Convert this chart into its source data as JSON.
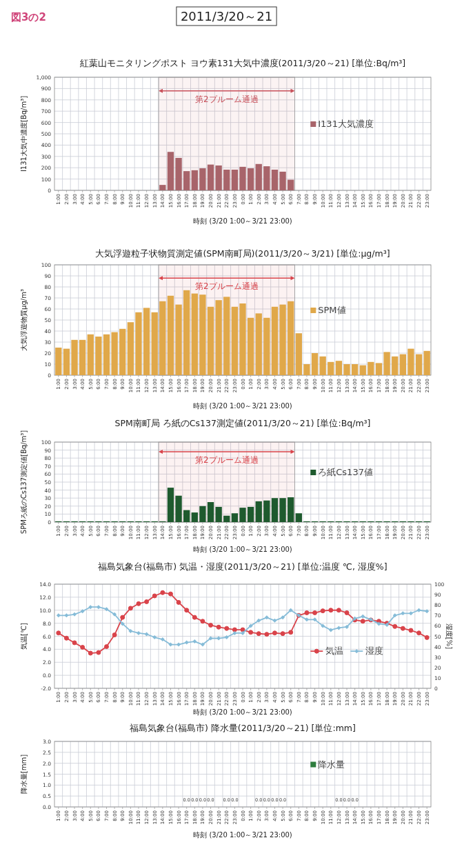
{
  "chart_data": [
    {
      "type": "bar",
      "title": "紅葉山モニタリングポスト ヨウ素131大気中濃度(2011/3/20～21) [単位:Bq/m³]",
      "ylabel": "I131大気中濃度[Bq/m³]",
      "xlabel": "時刻 (3/20 1:00～3/21 23:00)",
      "annotations": [
        "図3の2",
        "2011/3/20～21"
      ],
      "x": [
        "2011-03-20T14:00",
        "2011-03-20T15:00",
        "2011-03-20T16:00",
        "2011-03-20T17:00",
        "2011-03-20T18:00",
        "2011-03-20T19:00",
        "2011-03-20T20:00",
        "2011-03-20T21:00",
        "2011-03-20T22:00",
        "2011-03-20T23:00",
        "2011-03-21T00:00",
        "2011-03-21T01:00",
        "2011-03-21T02:00",
        "2011-03-21T03:00",
        "2011-03-21T04:00",
        "2011-03-21T05:00",
        "2011-03-21T06:00"
      ],
      "xlim": [
        "2011-03-20T00:30",
        "2011-03-21T23:30"
      ],
      "xticks": [
        {
          "value": "2011-03-20T01:00",
          "label": "1:00"
        },
        {
          "value": "2011-03-20T02:00",
          "label": "2:00"
        },
        {
          "value": "2011-03-20T03:00",
          "label": "3:00"
        },
        {
          "value": "2011-03-20T04:00",
          "label": "4:00"
        },
        {
          "value": "2011-03-20T05:00",
          "label": "5:00"
        },
        {
          "value": "2011-03-20T06:00",
          "label": "6:00"
        },
        {
          "value": "2011-03-20T07:00",
          "label": "7:00"
        },
        {
          "value": "2011-03-20T08:00",
          "label": "8:00"
        },
        {
          "value": "2011-03-20T09:00",
          "label": "9:00"
        },
        {
          "value": "2011-03-20T10:00",
          "label": "10:00"
        },
        {
          "value": "2011-03-20T11:00",
          "label": "11:00"
        },
        {
          "value": "2011-03-20T12:00",
          "label": "12:00"
        },
        {
          "value": "2011-03-20T13:00",
          "label": "13:00"
        },
        {
          "value": "2011-03-20T14:00",
          "label": "14:00"
        },
        {
          "value": "2011-03-20T15:00",
          "label": "15:00"
        },
        {
          "value": "2011-03-20T16:00",
          "label": "16:00"
        },
        {
          "value": "2011-03-20T17:00",
          "label": "17:00"
        },
        {
          "value": "2011-03-20T18:00",
          "label": "18:00"
        },
        {
          "value": "2011-03-20T19:00",
          "label": "19:00"
        },
        {
          "value": "2011-03-20T20:00",
          "label": "20:00"
        },
        {
          "value": "2011-03-20T21:00",
          "label": "21:00"
        },
        {
          "value": "2011-03-20T22:00",
          "label": "22:00"
        },
        {
          "value": "2011-03-20T23:00",
          "label": "23:00"
        },
        {
          "value": "2011-03-21T00:00",
          "label": "0:00"
        },
        {
          "value": "2011-03-21T01:00",
          "label": "1:00"
        },
        {
          "value": "2011-03-21T02:00",
          "label": "2:00"
        },
        {
          "value": "2011-03-21T03:00",
          "label": "3:00"
        },
        {
          "value": "2011-03-21T04:00",
          "label": "4:00"
        },
        {
          "value": "2011-03-21T05:00",
          "label": "5:00"
        },
        {
          "value": "2011-03-21T06:00",
          "label": "6:00"
        },
        {
          "value": "2011-03-21T07:00",
          "label": "7:00"
        },
        {
          "value": "2011-03-21T08:00",
          "label": "8:00"
        },
        {
          "value": "2011-03-21T09:00",
          "label": "9:00"
        },
        {
          "value": "2011-03-21T10:00",
          "label": "10:00"
        },
        {
          "value": "2011-03-21T11:00",
          "label": "11:00"
        },
        {
          "value": "2011-03-21T12:00",
          "label": "12:00"
        },
        {
          "value": "2011-03-21T13:00",
          "label": "13:00"
        },
        {
          "value": "2011-03-21T14:00",
          "label": "14:00"
        },
        {
          "value": "2011-03-21T15:00",
          "label": "15:00"
        },
        {
          "value": "2011-03-21T16:00",
          "label": "16:00"
        },
        {
          "value": "2011-03-21T17:00",
          "label": "17:00"
        },
        {
          "value": "2011-03-21T18:00",
          "label": "18:00"
        },
        {
          "value": "2011-03-21T19:00",
          "label": "19:00"
        },
        {
          "value": "2011-03-21T20:00",
          "label": "20:00"
        },
        {
          "value": "2011-03-21T21:00",
          "label": "21:00"
        },
        {
          "value": "2011-03-21T22:00",
          "label": "22:00"
        },
        {
          "value": "2011-03-21T23:00",
          "label": "23:00"
        }
      ],
      "ylim": [
        0,
        1000
      ],
      "yticks": [
        0,
        100,
        200,
        300,
        400,
        500,
        600,
        700,
        800,
        900,
        {
          "value": 1000,
          "label": "1,000"
        }
      ],
      "grid": true,
      "legend": "right",
      "bands": [
        {
          "axis": "x",
          "from": "2011-03-20T13:30",
          "to": "2011-03-21T06:30",
          "label": "第2プルーム通過",
          "color": "#c8505a"
        }
      ],
      "series": [
        {
          "name": "I131大気濃度",
          "color": "#a8646a",
          "values": [
            48,
            340,
            287,
            170,
            178,
            195,
            228,
            220,
            183,
            183,
            208,
            195,
            233,
            213,
            183,
            165,
            94
          ]
        }
      ]
    },
    {
      "type": "bar",
      "title": "大気浮遊粒子状物質測定値(SPM南町局)(2011/3/20～3/21) [単位:μg/m³]",
      "ylabel": "大気浮遊物質μg/m³",
      "xlabel": "時刻 (3/20 1:00～3/21 23:00)",
      "x": [
        "2011-03-20T01:00",
        "2011-03-20T02:00",
        "2011-03-20T03:00",
        "2011-03-20T04:00",
        "2011-03-20T05:00",
        "2011-03-20T06:00",
        "2011-03-20T07:00",
        "2011-03-20T08:00",
        "2011-03-20T09:00",
        "2011-03-20T10:00",
        "2011-03-20T11:00",
        "2011-03-20T12:00",
        "2011-03-20T13:00",
        "2011-03-20T14:00",
        "2011-03-20T15:00",
        "2011-03-20T16:00",
        "2011-03-20T17:00",
        "2011-03-20T18:00",
        "2011-03-20T19:00",
        "2011-03-20T20:00",
        "2011-03-20T21:00",
        "2011-03-20T22:00",
        "2011-03-20T23:00",
        "2011-03-21T00:00",
        "2011-03-21T01:00",
        "2011-03-21T02:00",
        "2011-03-21T03:00",
        "2011-03-21T04:00",
        "2011-03-21T05:00",
        "2011-03-21T06:00",
        "2011-03-21T07:00",
        "2011-03-21T08:00",
        "2011-03-21T09:00",
        "2011-03-21T10:00",
        "2011-03-21T11:00",
        "2011-03-21T12:00",
        "2011-03-21T13:00",
        "2011-03-21T14:00",
        "2011-03-21T15:00",
        "2011-03-21T16:00",
        "2011-03-21T17:00",
        "2011-03-21T18:00",
        "2011-03-21T19:00",
        "2011-03-21T20:00",
        "2011-03-21T21:00",
        "2011-03-21T22:00",
        "2011-03-21T23:00"
      ],
      "xlim": [
        "2011-03-20T00:30",
        "2011-03-21T23:30"
      ],
      "xticks": [
        {
          "value": "2011-03-20T01:00",
          "label": "1:00"
        },
        {
          "value": "2011-03-20T02:00",
          "label": "2:00"
        },
        {
          "value": "2011-03-20T03:00",
          "label": "3:00"
        },
        {
          "value": "2011-03-20T04:00",
          "label": "4:00"
        },
        {
          "value": "2011-03-20T05:00",
          "label": "5:00"
        },
        {
          "value": "2011-03-20T06:00",
          "label": "6:00"
        },
        {
          "value": "2011-03-20T07:00",
          "label": "7:00"
        },
        {
          "value": "2011-03-20T08:00",
          "label": "8:00"
        },
        {
          "value": "2011-03-20T09:00",
          "label": "9:00"
        },
        {
          "value": "2011-03-20T10:00",
          "label": "10:00"
        },
        {
          "value": "2011-03-20T11:00",
          "label": "11:00"
        },
        {
          "value": "2011-03-20T12:00",
          "label": "12:00"
        },
        {
          "value": "2011-03-20T13:00",
          "label": "13:00"
        },
        {
          "value": "2011-03-20T14:00",
          "label": "14:00"
        },
        {
          "value": "2011-03-20T15:00",
          "label": "15:00"
        },
        {
          "value": "2011-03-20T16:00",
          "label": "16:00"
        },
        {
          "value": "2011-03-20T17:00",
          "label": "17:00"
        },
        {
          "value": "2011-03-20T18:00",
          "label": "18:00"
        },
        {
          "value": "2011-03-20T19:00",
          "label": "19:00"
        },
        {
          "value": "2011-03-20T20:00",
          "label": "20:00"
        },
        {
          "value": "2011-03-20T21:00",
          "label": "21:00"
        },
        {
          "value": "2011-03-20T22:00",
          "label": "22:00"
        },
        {
          "value": "2011-03-20T23:00",
          "label": "23:00"
        },
        {
          "value": "2011-03-21T00:00",
          "label": "0:00"
        },
        {
          "value": "2011-03-21T01:00",
          "label": "1:00"
        },
        {
          "value": "2011-03-21T02:00",
          "label": "2:00"
        },
        {
          "value": "2011-03-21T03:00",
          "label": "3:00"
        },
        {
          "value": "2011-03-21T04:00",
          "label": "4:00"
        },
        {
          "value": "2011-03-21T05:00",
          "label": "5:00"
        },
        {
          "value": "2011-03-21T06:00",
          "label": "6:00"
        },
        {
          "value": "2011-03-21T07:00",
          "label": "7:00"
        },
        {
          "value": "2011-03-21T08:00",
          "label": "8:00"
        },
        {
          "value": "2011-03-21T09:00",
          "label": "9:00"
        },
        {
          "value": "2011-03-21T10:00",
          "label": "10:00"
        },
        {
          "value": "2011-03-21T11:00",
          "label": "11:00"
        },
        {
          "value": "2011-03-21T12:00",
          "label": "12:00"
        },
        {
          "value": "2011-03-21T13:00",
          "label": "13:00"
        },
        {
          "value": "2011-03-21T14:00",
          "label": "14:00"
        },
        {
          "value": "2011-03-21T15:00",
          "label": "15:00"
        },
        {
          "value": "2011-03-21T16:00",
          "label": "16:00"
        },
        {
          "value": "2011-03-21T17:00",
          "label": "17:00"
        },
        {
          "value": "2011-03-21T18:00",
          "label": "18:00"
        },
        {
          "value": "2011-03-21T19:00",
          "label": "19:00"
        },
        {
          "value": "2011-03-21T20:00",
          "label": "20:00"
        },
        {
          "value": "2011-03-21T21:00",
          "label": "21:00"
        },
        {
          "value": "2011-03-21T22:00",
          "label": "22:00"
        },
        {
          "value": "2011-03-21T23:00",
          "label": "23:00"
        }
      ],
      "ylim": [
        0,
        100
      ],
      "yticks": [
        0,
        10,
        20,
        30,
        40,
        50,
        60,
        70,
        80,
        90,
        100
      ],
      "grid": true,
      "legend": "right",
      "bands": [
        {
          "axis": "x",
          "from": "2011-03-20T13:30",
          "to": "2011-03-21T06:30",
          "label": "第2プルーム通過",
          "color": "#d9434a"
        }
      ],
      "series": [
        {
          "name": "SPM値",
          "color": "#e0a84a",
          "values": [
            25,
            24,
            32,
            32,
            37,
            35,
            37,
            39,
            42,
            48,
            57,
            61,
            57,
            67,
            72,
            64,
            77,
            74,
            73,
            62,
            68,
            71,
            62,
            65,
            52,
            56,
            52,
            62,
            64,
            67,
            38,
            10,
            20,
            17,
            12,
            13,
            10,
            10,
            9,
            12,
            11,
            21,
            17,
            19,
            24,
            19,
            22
          ]
        }
      ]
    },
    {
      "type": "bar",
      "title": "SPM南町局 ろ紙のCs137測定値(2011/3/20～21) [単位:Bq/m³]",
      "ylabel": "SPMろ紙のCs137測定値[Bq/m³]",
      "xlabel": "時刻 (3/20 1:00～3/21 23:00)",
      "x": [
        "2011-03-20T01:00",
        "2011-03-20T02:00",
        "2011-03-20T03:00",
        "2011-03-20T04:00",
        "2011-03-20T05:00",
        "2011-03-20T06:00",
        "2011-03-20T07:00",
        "2011-03-20T08:00",
        "2011-03-20T09:00",
        "2011-03-20T10:00",
        "2011-03-20T11:00",
        "2011-03-20T12:00",
        "2011-03-20T13:00",
        "2011-03-20T14:00",
        "2011-03-20T15:00",
        "2011-03-20T16:00",
        "2011-03-20T17:00",
        "2011-03-20T18:00",
        "2011-03-20T19:00",
        "2011-03-20T20:00",
        "2011-03-20T21:00",
        "2011-03-20T22:00",
        "2011-03-20T23:00",
        "2011-03-21T00:00",
        "2011-03-21T01:00",
        "2011-03-21T02:00",
        "2011-03-21T03:00",
        "2011-03-21T04:00",
        "2011-03-21T05:00",
        "2011-03-21T06:00",
        "2011-03-21T07:00",
        "2011-03-21T08:00",
        "2011-03-21T09:00",
        "2011-03-21T10:00",
        "2011-03-21T11:00",
        "2011-03-21T12:00",
        "2011-03-21T13:00",
        "2011-03-21T14:00",
        "2011-03-21T15:00",
        "2011-03-21T16:00",
        "2011-03-21T17:00",
        "2011-03-21T18:00",
        "2011-03-21T19:00",
        "2011-03-21T20:00",
        "2011-03-21T21:00",
        "2011-03-21T22:00",
        "2011-03-21T23:00"
      ],
      "xlim": [
        "2011-03-20T00:30",
        "2011-03-21T23:30"
      ],
      "xticks": [
        {
          "value": "2011-03-20T01:00",
          "label": "1:00"
        },
        {
          "value": "2011-03-20T02:00",
          "label": "2:00"
        },
        {
          "value": "2011-03-20T03:00",
          "label": "3:00"
        },
        {
          "value": "2011-03-20T04:00",
          "label": "4:00"
        },
        {
          "value": "2011-03-20T05:00",
          "label": "5:00"
        },
        {
          "value": "2011-03-20T06:00",
          "label": "6:00"
        },
        {
          "value": "2011-03-20T07:00",
          "label": "7:00"
        },
        {
          "value": "2011-03-20T08:00",
          "label": "8:00"
        },
        {
          "value": "2011-03-20T09:00",
          "label": "9:00"
        },
        {
          "value": "2011-03-20T10:00",
          "label": "10:00"
        },
        {
          "value": "2011-03-20T11:00",
          "label": "11:00"
        },
        {
          "value": "2011-03-20T12:00",
          "label": "12:00"
        },
        {
          "value": "2011-03-20T13:00",
          "label": "13:00"
        },
        {
          "value": "2011-03-20T14:00",
          "label": "14:00"
        },
        {
          "value": "2011-03-20T15:00",
          "label": "15:00"
        },
        {
          "value": "2011-03-20T16:00",
          "label": "16:00"
        },
        {
          "value": "2011-03-20T17:00",
          "label": "17:00"
        },
        {
          "value": "2011-03-20T18:00",
          "label": "18:00"
        },
        {
          "value": "2011-03-20T19:00",
          "label": "19:00"
        },
        {
          "value": "2011-03-20T20:00",
          "label": "20:00"
        },
        {
          "value": "2011-03-20T21:00",
          "label": "21:00"
        },
        {
          "value": "2011-03-20T22:00",
          "label": "22:00"
        },
        {
          "value": "2011-03-20T23:00",
          "label": "23:00"
        },
        {
          "value": "2011-03-21T00:00",
          "label": "0:00"
        },
        {
          "value": "2011-03-21T01:00",
          "label": "1:00"
        },
        {
          "value": "2011-03-21T02:00",
          "label": "2:00"
        },
        {
          "value": "2011-03-21T03:00",
          "label": "3:00"
        },
        {
          "value": "2011-03-21T04:00",
          "label": "4:00"
        },
        {
          "value": "2011-03-21T05:00",
          "label": "5:00"
        },
        {
          "value": "2011-03-21T06:00",
          "label": "6:00"
        },
        {
          "value": "2011-03-21T07:00",
          "label": "7:00"
        },
        {
          "value": "2011-03-21T08:00",
          "label": "8:00"
        },
        {
          "value": "2011-03-21T09:00",
          "label": "9:00"
        },
        {
          "value": "2011-03-21T10:00",
          "label": "10:00"
        },
        {
          "value": "2011-03-21T11:00",
          "label": "11:00"
        },
        {
          "value": "2011-03-21T12:00",
          "label": "12:00"
        },
        {
          "value": "2011-03-21T13:00",
          "label": "13:00"
        },
        {
          "value": "2011-03-21T14:00",
          "label": "14:00"
        },
        {
          "value": "2011-03-21T15:00",
          "label": "15:00"
        },
        {
          "value": "2011-03-21T16:00",
          "label": "16:00"
        },
        {
          "value": "2011-03-21T17:00",
          "label": "17:00"
        },
        {
          "value": "2011-03-21T18:00",
          "label": "18:00"
        },
        {
          "value": "2011-03-21T19:00",
          "label": "19:00"
        },
        {
          "value": "2011-03-21T20:00",
          "label": "20:00"
        },
        {
          "value": "2011-03-21T21:00",
          "label": "21:00"
        },
        {
          "value": "2011-03-21T22:00",
          "label": "22:00"
        },
        {
          "value": "2011-03-21T23:00",
          "label": "23:00"
        }
      ],
      "ylim": [
        0,
        100
      ],
      "yticks": [
        0,
        10,
        20,
        30,
        40,
        50,
        60,
        70,
        80,
        90,
        100
      ],
      "grid": true,
      "legend": "right",
      "bands": [
        {
          "axis": "x",
          "from": "2011-03-20T13:30",
          "to": "2011-03-21T06:30",
          "label": "第2プルーム通過",
          "color": "#d9434a"
        }
      ],
      "series": [
        {
          "name": "ろ紙Cs137値",
          "color": "#1e5a2e",
          "values": [
            1,
            1,
            1,
            1,
            1,
            1,
            1,
            1,
            1,
            1,
            1,
            1,
            1,
            1,
            43,
            33,
            15,
            12,
            20,
            25,
            19,
            8,
            11,
            18,
            19,
            26,
            27,
            30,
            30,
            31,
            11,
            1,
            1,
            1,
            1,
            1,
            1,
            1,
            1,
            1,
            1,
            1,
            1,
            1,
            1,
            1,
            1
          ]
        }
      ]
    },
    {
      "type": "line",
      "title": "福島気象台(福島市) 気温・湿度(2011/3/20～21) [単位:温度 ℃, 湿度%]",
      "ylabel": "気温[℃]",
      "y2label": "湿度[%]",
      "xlabel": "時刻 (3/20 1:00～3/21 23:00)",
      "x": [
        "2011-03-20T01:00",
        "2011-03-20T02:00",
        "2011-03-20T03:00",
        "2011-03-20T04:00",
        "2011-03-20T05:00",
        "2011-03-20T06:00",
        "2011-03-20T07:00",
        "2011-03-20T08:00",
        "2011-03-20T09:00",
        "2011-03-20T10:00",
        "2011-03-20T11:00",
        "2011-03-20T12:00",
        "2011-03-20T13:00",
        "2011-03-20T14:00",
        "2011-03-20T15:00",
        "2011-03-20T16:00",
        "2011-03-20T17:00",
        "2011-03-20T18:00",
        "2011-03-20T19:00",
        "2011-03-20T20:00",
        "2011-03-20T21:00",
        "2011-03-20T22:00",
        "2011-03-20T23:00",
        "2011-03-21T00:00",
        "2011-03-21T01:00",
        "2011-03-21T02:00",
        "2011-03-21T03:00",
        "2011-03-21T04:00",
        "2011-03-21T05:00",
        "2011-03-21T06:00",
        "2011-03-21T07:00",
        "2011-03-21T08:00",
        "2011-03-21T09:00",
        "2011-03-21T10:00",
        "2011-03-21T11:00",
        "2011-03-21T12:00",
        "2011-03-21T13:00",
        "2011-03-21T14:00",
        "2011-03-21T15:00",
        "2011-03-21T16:00",
        "2011-03-21T17:00",
        "2011-03-21T18:00",
        "2011-03-21T19:00",
        "2011-03-21T20:00",
        "2011-03-21T21:00",
        "2011-03-21T22:00",
        "2011-03-21T23:00"
      ],
      "xlim": [
        "2011-03-20T00:30",
        "2011-03-21T23:30"
      ],
      "xticks": [
        {
          "value": "2011-03-20T01:00",
          "label": "1:00"
        },
        {
          "value": "2011-03-20T02:00",
          "label": "2:00"
        },
        {
          "value": "2011-03-20T03:00",
          "label": "3:00"
        },
        {
          "value": "2011-03-20T04:00",
          "label": "4:00"
        },
        {
          "value": "2011-03-20T05:00",
          "label": "5:00"
        },
        {
          "value": "2011-03-20T06:00",
          "label": "6:00"
        },
        {
          "value": "2011-03-20T07:00",
          "label": "7:00"
        },
        {
          "value": "2011-03-20T08:00",
          "label": "8:00"
        },
        {
          "value": "2011-03-20T09:00",
          "label": "9:00"
        },
        {
          "value": "2011-03-20T10:00",
          "label": "10:00"
        },
        {
          "value": "2011-03-20T11:00",
          "label": "11:00"
        },
        {
          "value": "2011-03-20T12:00",
          "label": "12:00"
        },
        {
          "value": "2011-03-20T13:00",
          "label": "13:00"
        },
        {
          "value": "2011-03-20T14:00",
          "label": "14:00"
        },
        {
          "value": "2011-03-20T15:00",
          "label": "15:00"
        },
        {
          "value": "2011-03-20T16:00",
          "label": "16:00"
        },
        {
          "value": "2011-03-20T17:00",
          "label": "17:00"
        },
        {
          "value": "2011-03-20T18:00",
          "label": "18:00"
        },
        {
          "value": "2011-03-20T19:00",
          "label": "19:00"
        },
        {
          "value": "2011-03-20T20:00",
          "label": "20:00"
        },
        {
          "value": "2011-03-20T21:00",
          "label": "21:00"
        },
        {
          "value": "2011-03-20T22:00",
          "label": "22:00"
        },
        {
          "value": "2011-03-20T23:00",
          "label": "23:00"
        },
        {
          "value": "2011-03-21T00:00",
          "label": "0:00"
        },
        {
          "value": "2011-03-21T01:00",
          "label": "1:00"
        },
        {
          "value": "2011-03-21T02:00",
          "label": "2:00"
        },
        {
          "value": "2011-03-21T03:00",
          "label": "3:00"
        },
        {
          "value": "2011-03-21T04:00",
          "label": "4:00"
        },
        {
          "value": "2011-03-21T05:00",
          "label": "5:00"
        },
        {
          "value": "2011-03-21T06:00",
          "label": "6:00"
        },
        {
          "value": "2011-03-21T07:00",
          "label": "7:00"
        },
        {
          "value": "2011-03-21T08:00",
          "label": "8:00"
        },
        {
          "value": "2011-03-21T09:00",
          "label": "9:00"
        },
        {
          "value": "2011-03-21T10:00",
          "label": "10:00"
        },
        {
          "value": "2011-03-21T11:00",
          "label": "11:00"
        },
        {
          "value": "2011-03-21T12:00",
          "label": "12:00"
        },
        {
          "value": "2011-03-21T13:00",
          "label": "13:00"
        },
        {
          "value": "2011-03-21T14:00",
          "label": "14:00"
        },
        {
          "value": "2011-03-21T15:00",
          "label": "15:00"
        },
        {
          "value": "2011-03-21T16:00",
          "label": "16:00"
        },
        {
          "value": "2011-03-21T17:00",
          "label": "17:00"
        },
        {
          "value": "2011-03-21T18:00",
          "label": "18:00"
        },
        {
          "value": "2011-03-21T19:00",
          "label": "19:00"
        },
        {
          "value": "2011-03-21T20:00",
          "label": "20:00"
        },
        {
          "value": "2011-03-21T21:00",
          "label": "21:00"
        },
        {
          "value": "2011-03-21T22:00",
          "label": "22:00"
        },
        {
          "value": "2011-03-21T23:00",
          "label": "23:00"
        }
      ],
      "ylim": [
        -2,
        14
      ],
      "yticks": [
        {
          "value": -2,
          "label": "-2.0"
        },
        {
          "value": 0,
          "label": "0.0"
        },
        {
          "value": 2,
          "label": "2.0"
        },
        {
          "value": 4,
          "label": "4.0"
        },
        {
          "value": 6,
          "label": "6.0"
        },
        {
          "value": 8,
          "label": "8.0"
        },
        {
          "value": 10,
          "label": "10.0"
        },
        {
          "value": 12,
          "label": "12.0"
        },
        {
          "value": 14,
          "label": "14.0"
        }
      ],
      "y2lim": [
        0,
        100
      ],
      "y2ticks": [
        0,
        10,
        20,
        30,
        40,
        50,
        60,
        70,
        80,
        90,
        100
      ],
      "grid": true,
      "legend": "bottom right",
      "series": [
        {
          "name": "気温",
          "color": "#d9434a",
          "marker": "circle",
          "values": [
            6.5,
            5.7,
            5.0,
            4.3,
            3.4,
            3.5,
            4.4,
            6.2,
            8.9,
            10.3,
            11.0,
            11.3,
            12.2,
            12.7,
            12.5,
            11.2,
            10.0,
            8.9,
            8.3,
            7.7,
            7.4,
            7.2,
            7.0,
            7.0,
            6.6,
            6.4,
            6.3,
            6.5,
            6.4,
            6.6,
            9.2,
            9.6,
            9.6,
            9.9,
            10.0,
            10.0,
            9.6,
            8.5,
            8.3,
            8.5,
            8.3,
            8.0,
            7.5,
            7.2,
            6.9,
            6.5,
            5.8
          ]
        },
        {
          "name": "湿度",
          "color": "#86bcd8",
          "marker": "diamond",
          "axis": "y2",
          "values": [
            70,
            70,
            71,
            74,
            78,
            78,
            76,
            71,
            62,
            55,
            53,
            52,
            49,
            47,
            42,
            42,
            44,
            45,
            42,
            48,
            48,
            49,
            53,
            53,
            60,
            65,
            68,
            65,
            68,
            75,
            70,
            66,
            66,
            60,
            56,
            58,
            59,
            67,
            69,
            66,
            62,
            61,
            70,
            72,
            72,
            75,
            74
          ]
        }
      ]
    },
    {
      "type": "bar",
      "title": "福島気象台(福島市) 降水量(2011/3/20～21) [単位:mm]",
      "ylabel": "降水量[mm]",
      "xlabel": "時刻 (3/20 1:00～3/21 23:00)",
      "x": [
        "2011-03-20T17:00",
        "2011-03-20T18:00",
        "2011-03-20T19:00",
        "2011-03-20T20:00",
        "2011-03-20T21:00",
        "2011-03-20T22:00",
        "2011-03-20T23:00",
        "2011-03-21T00:00",
        "2011-03-21T01:00",
        "2011-03-21T02:00",
        "2011-03-21T03:00",
        "2011-03-21T04:00",
        "2011-03-21T05:00",
        "2011-03-21T06:00",
        "2011-03-21T07:00",
        "2011-03-21T08:00",
        "2011-03-21T09:00",
        "2011-03-21T10:00",
        "2011-03-21T11:00",
        "2011-03-21T12:00",
        "2011-03-21T13:00",
        "2011-03-21T14:00"
      ],
      "xlim": [
        "2011-03-20T00:30",
        "2011-03-21T23:30"
      ],
      "xticks": [
        {
          "value": "2011-03-20T01:00",
          "label": "1:00"
        },
        {
          "value": "2011-03-20T02:00",
          "label": "2:00"
        },
        {
          "value": "2011-03-20T03:00",
          "label": "3:00"
        },
        {
          "value": "2011-03-20T04:00",
          "label": "4:00"
        },
        {
          "value": "2011-03-20T05:00",
          "label": "5:00"
        },
        {
          "value": "2011-03-20T06:00",
          "label": "6:00"
        },
        {
          "value": "2011-03-20T07:00",
          "label": "7:00"
        },
        {
          "value": "2011-03-20T08:00",
          "label": "8:00"
        },
        {
          "value": "2011-03-20T09:00",
          "label": "9:00"
        },
        {
          "value": "2011-03-20T10:00",
          "label": "10:00"
        },
        {
          "value": "2011-03-20T11:00",
          "label": "11:00"
        },
        {
          "value": "2011-03-20T12:00",
          "label": "12:00"
        },
        {
          "value": "2011-03-20T13:00",
          "label": "13:00"
        },
        {
          "value": "2011-03-20T14:00",
          "label": "14:00"
        },
        {
          "value": "2011-03-20T15:00",
          "label": "15:00"
        },
        {
          "value": "2011-03-20T16:00",
          "label": "16:00"
        },
        {
          "value": "2011-03-20T17:00",
          "label": "17:00"
        },
        {
          "value": "2011-03-20T18:00",
          "label": "18:00"
        },
        {
          "value": "2011-03-20T19:00",
          "label": "19:00"
        },
        {
          "value": "2011-03-20T20:00",
          "label": "20:00"
        },
        {
          "value": "2011-03-20T21:00",
          "label": "21:00"
        },
        {
          "value": "2011-03-20T22:00",
          "label": "22:00"
        },
        {
          "value": "2011-03-20T23:00",
          "label": "23:00"
        },
        {
          "value": "2011-03-21T00:00",
          "label": "0:00"
        },
        {
          "value": "2011-03-21T01:00",
          "label": "1:00"
        },
        {
          "value": "2011-03-21T02:00",
          "label": "2:00"
        },
        {
          "value": "2011-03-21T03:00",
          "label": "3:00"
        },
        {
          "value": "2011-03-21T04:00",
          "label": "4:00"
        },
        {
          "value": "2011-03-21T05:00",
          "label": "5:00"
        },
        {
          "value": "2011-03-21T06:00",
          "label": "6:00"
        },
        {
          "value": "2011-03-21T07:00",
          "label": "7:00"
        },
        {
          "value": "2011-03-21T08:00",
          "label": "8:00"
        },
        {
          "value": "2011-03-21T09:00",
          "label": "9:00"
        },
        {
          "value": "2011-03-21T10:00",
          "label": "10:00"
        },
        {
          "value": "2011-03-21T11:00",
          "label": "11:00"
        },
        {
          "value": "2011-03-21T12:00",
          "label": "12:00"
        },
        {
          "value": "2011-03-21T13:00",
          "label": "13:00"
        },
        {
          "value": "2011-03-21T14:00",
          "label": "14:00"
        },
        {
          "value": "2011-03-21T15:00",
          "label": "15:00"
        },
        {
          "value": "2011-03-21T16:00",
          "label": "16:00"
        },
        {
          "value": "2011-03-21T17:00",
          "label": "17:00"
        },
        {
          "value": "2011-03-21T18:00",
          "label": "18:00"
        },
        {
          "value": "2011-03-21T19:00",
          "label": "19:00"
        },
        {
          "value": "2011-03-21T20:00",
          "label": "20:00"
        },
        {
          "value": "2011-03-21T21:00",
          "label": "21:00"
        },
        {
          "value": "2011-03-21T22:00",
          "label": "22:00"
        },
        {
          "value": "2011-03-21T23:00",
          "label": "23:00"
        }
      ],
      "ylim": [
        0,
        3
      ],
      "yticks": [
        {
          "value": 0,
          "label": "0.0"
        },
        {
          "value": 0.5,
          "label": "0.5"
        },
        {
          "value": 1,
          "label": "1.0"
        },
        {
          "value": 1.5,
          "label": "1.5"
        },
        {
          "value": 2,
          "label": "2.0"
        },
        {
          "value": 2.5,
          "label": "2.5"
        },
        {
          "value": 3,
          "label": "3.0"
        }
      ],
      "grid": true,
      "legend": "right",
      "series": [
        {
          "name": "降水量",
          "color": "#2e7d3e",
          "values": [
            0,
            0,
            0,
            0,
            null,
            0,
            0,
            null,
            null,
            0,
            0,
            0,
            0,
            null,
            null,
            null,
            null,
            null,
            null,
            0,
            0,
            0
          ],
          "value_labels": [
            "0.0",
            "0.0",
            "0.0",
            "0.0",
            null,
            "0.0",
            "0.0",
            null,
            null,
            "0.0",
            "0.0",
            "0.0",
            "0.0",
            null,
            null,
            null,
            null,
            null,
            null,
            "0.0",
            "0.0",
            "0.0"
          ]
        }
      ]
    }
  ]
}
